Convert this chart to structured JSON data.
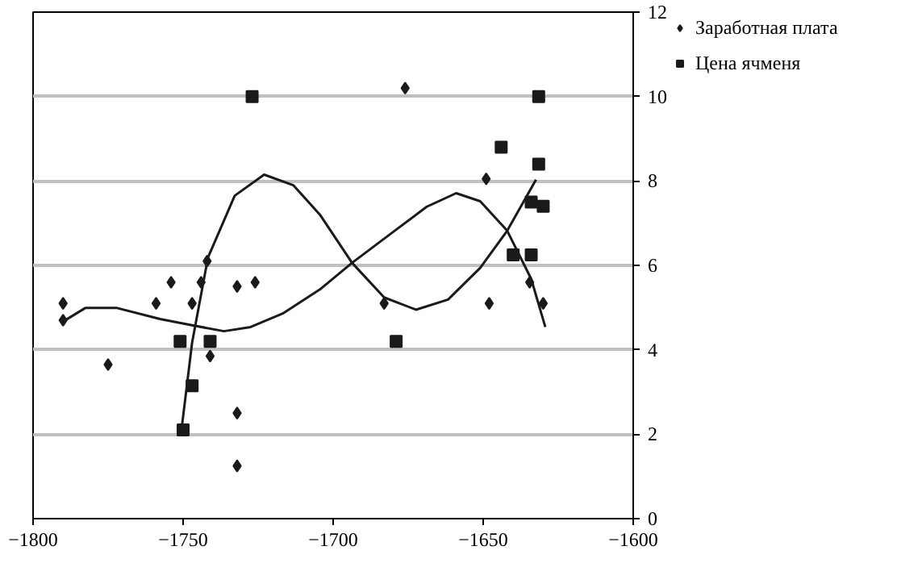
{
  "chart_data": {
    "type": "scatter",
    "xlim": [
      -1800,
      -1600
    ],
    "xticks": [
      {
        "value": -1800,
        "label": "−1800"
      },
      {
        "value": -1750,
        "label": "−1750"
      },
      {
        "value": -1700,
        "label": "−1700"
      },
      {
        "value": -1650,
        "label": "−1650"
      },
      {
        "value": -1600,
        "label": "−1600"
      }
    ],
    "ylim": [
      0,
      12
    ],
    "yticks": [
      0,
      2,
      4,
      6,
      8,
      10,
      12
    ],
    "grid": "y",
    "legend": "top right",
    "series": [
      {
        "name": "Заработная плата",
        "marker": "diamond",
        "color": "#1a1a1a",
        "x": [
          -1790,
          -1790,
          -1775,
          -1759,
          -1754,
          -1747,
          -1744,
          -1742,
          -1741,
          -1732,
          -1732,
          -1732,
          -1726,
          -1683,
          -1676,
          -1649,
          -1648,
          -1634.5,
          -1630
        ],
        "values": [
          5.1,
          4.7,
          3.65,
          5.1,
          5.6,
          5.1,
          5.6,
          6.1,
          3.85,
          5.5,
          2.5,
          1.25,
          5.6,
          5.1,
          10.2,
          8.05,
          5.1,
          5.6,
          5.1
        ]
      },
      {
        "name": "Цена ячменя",
        "marker": "square",
        "color": "#1a1a1a",
        "x": [
          -1751,
          -1741,
          -1747,
          -1750,
          -1727,
          -1679,
          -1644,
          -1640,
          -1634,
          -1634,
          -1631.5,
          -1631.5,
          -1630
        ],
        "values": [
          4.2,
          4.2,
          3.15,
          2.1,
          10,
          4.2,
          8.8,
          6.25,
          6.25,
          7.5,
          10,
          8.4,
          7.4
        ]
      },
      {
        "type": "line",
        "line_style": "solid",
        "color": "#1a1a1a",
        "x": [
          -1790,
          -1782.6,
          -1772,
          -1757.7,
          -1747,
          -1736.4,
          -1727.5,
          -1716.8,
          -1704.4,
          -1693.7,
          -1679.5,
          -1668.8,
          -1659,
          -1651,
          -1642,
          -1634,
          -1629.3
        ],
        "values": [
          4.67,
          4.99,
          4.99,
          4.73,
          4.58,
          4.44,
          4.54,
          4.86,
          5.43,
          6.06,
          6.82,
          7.39,
          7.71,
          7.52,
          6.82,
          5.68,
          4.54
        ]
      },
      {
        "type": "line",
        "line_style": "solid",
        "color": "#1a1a1a",
        "x": [
          -1750.6,
          -1747,
          -1741.7,
          -1732.8,
          -1723,
          -1713.3,
          -1704.4,
          -1693.7,
          -1683,
          -1672.4,
          -1661.7,
          -1651,
          -1642,
          -1632.4
        ],
        "values": [
          2.07,
          4.17,
          6.19,
          7.65,
          8.15,
          7.9,
          7.2,
          6.06,
          5.24,
          4.95,
          5.19,
          5.94,
          6.82,
          8.03
        ]
      }
    ]
  }
}
